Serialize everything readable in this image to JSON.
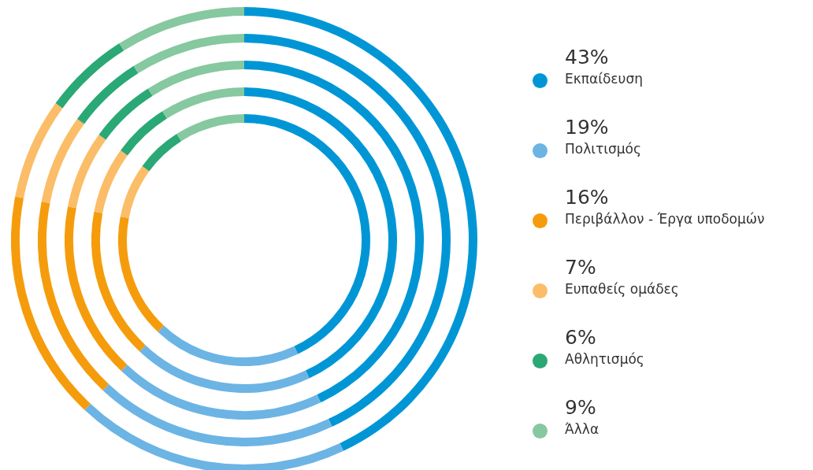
{
  "chart_data": {
    "type": "donut",
    "categories": [
      "Εκπαίδευση",
      "Πολιτισμός",
      "Περιβάλλον - Έργα υποδομών",
      "Ευπαθείς ομάδες",
      "Αθλητισμός",
      "Άλλα"
    ],
    "colors": [
      "#0096d6",
      "#6cb4e4",
      "#f59c0c",
      "#fbbd68",
      "#2aa876",
      "#86c8a0"
    ],
    "series": [
      {
        "values": [
          43,
          19,
          16,
          7,
          6,
          9
        ]
      },
      {
        "values": [
          43,
          19,
          16,
          7,
          6,
          9
        ]
      },
      {
        "values": [
          43,
          19,
          16,
          7,
          6,
          9
        ]
      },
      {
        "values": [
          43,
          19,
          16,
          7,
          6,
          9
        ]
      },
      {
        "values": [
          43,
          19,
          16,
          7,
          6,
          9
        ]
      }
    ],
    "value_labels": [
      "43%",
      "19%",
      "16%",
      "7%",
      "6%",
      "9%"
    ],
    "legend": "right"
  }
}
